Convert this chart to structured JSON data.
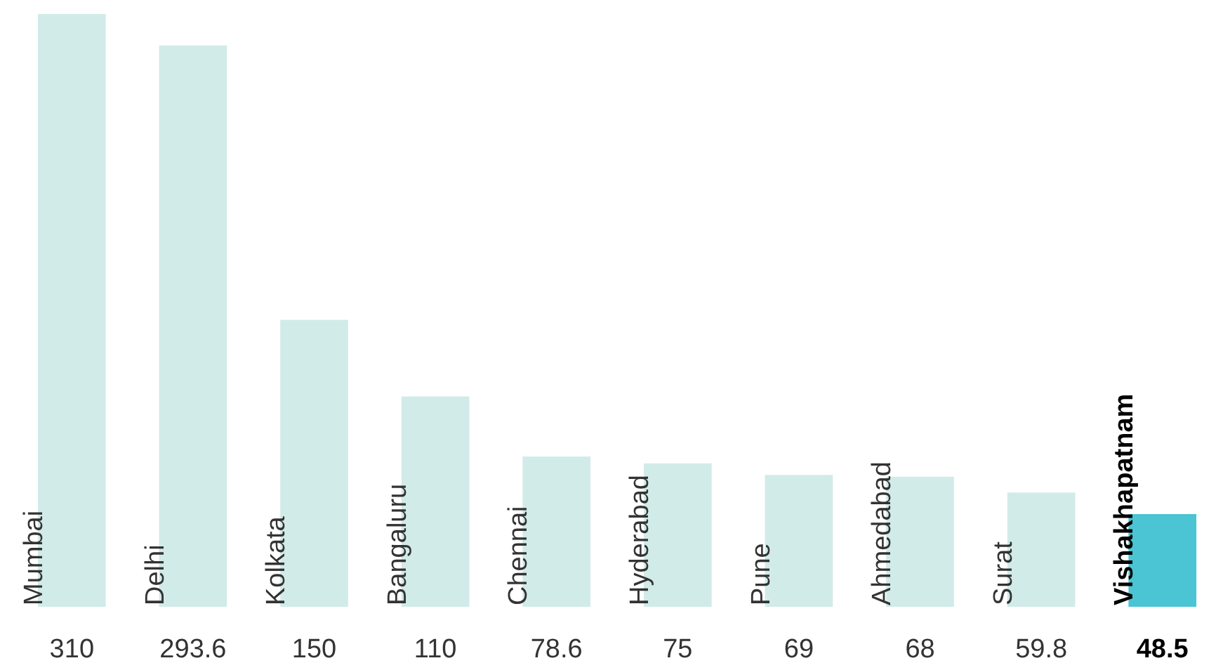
{
  "chart_data": {
    "type": "bar",
    "categories": [
      "Mumbai",
      "Delhi",
      "Kolkata",
      "Bangaluru",
      "Chennai",
      "Hyderabad",
      "Pune",
      "Ahmedabad",
      "Surat",
      "Vishakhapatnam"
    ],
    "values": [
      310,
      293.6,
      150,
      110,
      78.6,
      75,
      69,
      68,
      59.8,
      48.5
    ],
    "colors": [
      "#d1ebe8",
      "#d1ebe8",
      "#d1ebe8",
      "#d1ebe8",
      "#d1ebe8",
      "#d1ebe8",
      "#d1ebe8",
      "#d1ebe8",
      "#d1ebe8",
      "#4bc4d4"
    ],
    "data_labels": true,
    "legend": false
  }
}
